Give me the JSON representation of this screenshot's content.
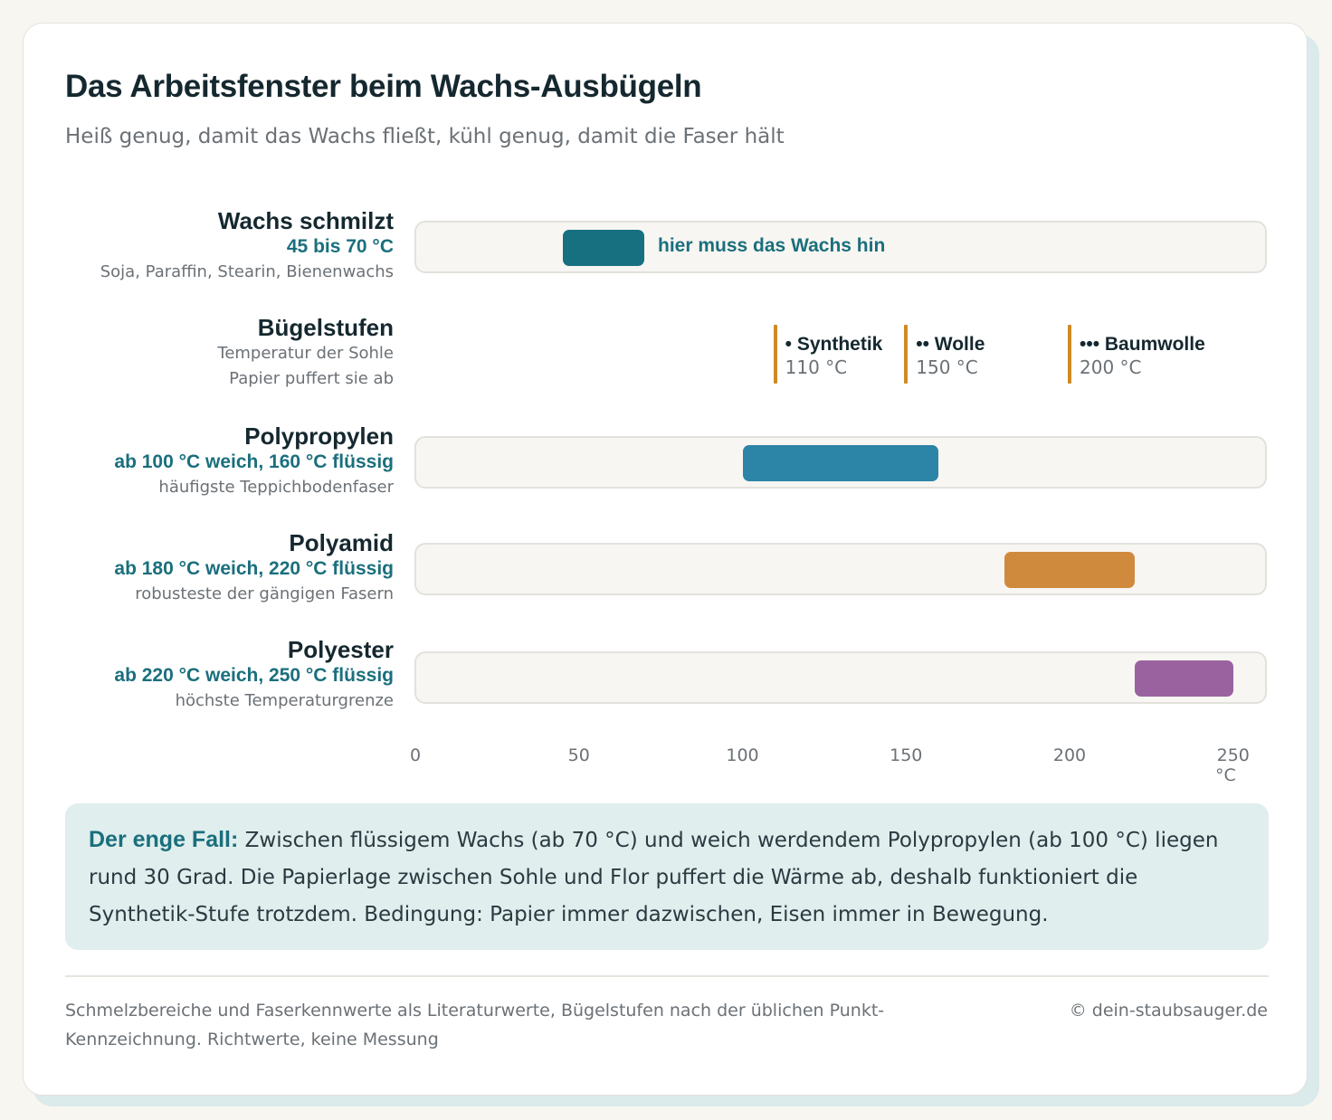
{
  "header": {
    "title": "Das Arbeitsfenster beim Wachs-Ausbügeln",
    "subtitle": "Heiß genug, damit das Wachs fließt, kühl genug, damit die Faser hält"
  },
  "chart_data": {
    "type": "bar",
    "orientation": "horizontal-range",
    "xlim": [
      0,
      260
    ],
    "xticks": [
      "0",
      "50",
      "100",
      "150",
      "200",
      "250"
    ],
    "x_unit": "°C",
    "grid": false,
    "rows": [
      {
        "name": "Wachs schmilzt",
        "range_label": "45 bis 70 °C",
        "note": "Soja, Paraffin, Stearin, Bienenwachs",
        "start": 45,
        "end": 70,
        "color": "#17707f",
        "bar_label": "hier muss das Wachs hin"
      },
      {
        "name": "Polypropylen",
        "range_label": "ab 100 °C weich, 160 °C flüssig",
        "note": "häufigste Teppichbodenfaser",
        "start": 100,
        "end": 160,
        "color": "#2c84a6"
      },
      {
        "name": "Polyamid",
        "range_label": "ab 180 °C weich, 220 °C flüssig",
        "note": "robusteste der gängigen Fasern",
        "start": 180,
        "end": 220,
        "color": "#d08a3e"
      },
      {
        "name": "Polyester",
        "range_label": "ab 220 °C weich, 250 °C flüssig",
        "note": "höchste Temperaturgrenze",
        "start": 220,
        "end": 250,
        "color": "#9a63a0"
      }
    ],
    "iron": {
      "name": "Bügelstufen",
      "note1": "Temperatur der Sohle",
      "note2": "Papier puffert sie ab",
      "marker_color": "#d08a25",
      "levels": [
        {
          "label": "• Synthetik",
          "temp_label": "110 °C",
          "value": 110
        },
        {
          "label": "•• Wolle",
          "temp_label": "150 °C",
          "value": 150
        },
        {
          "label": "••• Baumwolle",
          "temp_label": "200 °C",
          "value": 200
        }
      ]
    }
  },
  "callout": {
    "lead": "Der enge Fall:",
    "text": " Zwischen flüssigem Wachs (ab 70 °C) und weich werdendem Polypropylen (ab 100 °C) liegen rund 30 Grad. Die Papierlage zwischen Sohle und Flor puffert die Wärme ab, deshalb funktioniert die Synthetik-Stufe trotzdem. Bedingung: Papier immer dazwischen, Eisen immer in Bewegung."
  },
  "footer": {
    "note": "Schmelzbereiche und Faserkennwerte als Literaturwerte, Bügelstufen nach der üblichen Punkt-Kennzeichnung. Richtwerte, keine Messung",
    "credit": "© dein-staubsauger.de"
  }
}
